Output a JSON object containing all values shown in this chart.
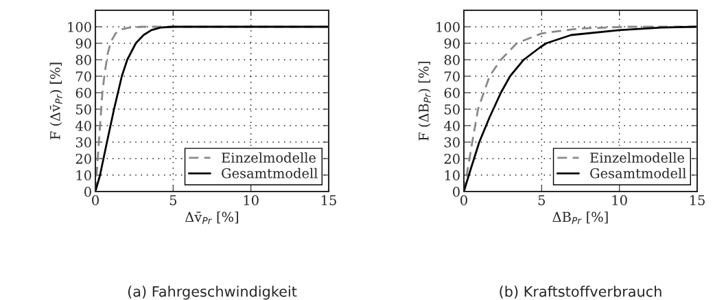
{
  "chart_data": [
    {
      "type": "line",
      "xlabel": "Δv̄$_{Pr}$ [%]",
      "ylabel": "F (Δv̄$_{Pr}$) [%]",
      "annotations": [
        "(a) Fahrgeschwindigkeit"
      ],
      "xlim": [
        0,
        15
      ],
      "ylim": [
        0,
        110
      ],
      "xticks": [
        0,
        5,
        10,
        15
      ],
      "yticks": [
        0,
        10,
        20,
        30,
        40,
        50,
        60,
        70,
        80,
        90,
        100
      ],
      "grid": true,
      "legend": "bottom right",
      "series": [
        {
          "name": "Einzelmodelle",
          "color": "#888888",
          "line_style": "dashed",
          "x": [
            0,
            0.15,
            0.3,
            0.45,
            0.6,
            0.8,
            1.0,
            1.3,
            1.7,
            2.2,
            3,
            15
          ],
          "values": [
            0,
            20,
            40,
            60,
            72,
            84,
            91,
            96,
            98.5,
            99.5,
            100,
            100
          ]
        },
        {
          "name": "Gesamtmodell",
          "color": "#000000",
          "line_style": "solid",
          "x": [
            0,
            0.3,
            0.7,
            1.2,
            1.7,
            2.05,
            2.6,
            3.1,
            3.6,
            4.2,
            5,
            15
          ],
          "values": [
            0,
            10,
            28,
            50,
            70,
            80,
            90,
            95,
            98,
            99.5,
            100,
            100
          ]
        }
      ]
    },
    {
      "type": "line",
      "xlabel": "ΔB$_{Pr}$ [%]",
      "ylabel": "F (ΔB$_{Pr}$) [%]",
      "annotations": [
        "(b) Kraftstoffverbrauch"
      ],
      "xlim": [
        0,
        15
      ],
      "ylim": [
        0,
        110
      ],
      "xticks": [
        0,
        5,
        10,
        15
      ],
      "yticks": [
        0,
        10,
        20,
        30,
        40,
        50,
        60,
        70,
        80,
        90,
        100
      ],
      "grid": true,
      "legend": "bottom right",
      "series": [
        {
          "name": "Einzelmodelle",
          "color": "#888888",
          "line_style": "dashed",
          "x": [
            0,
            0.18,
            0.54,
            0.91,
            1.28,
            1.65,
            2.38,
            3.4,
            5,
            7.5,
            10.5,
            15
          ],
          "values": [
            0,
            10,
            30,
            50,
            60,
            70,
            80,
            90,
            96,
            99,
            100,
            100
          ]
        },
        {
          "name": "Gesamtmodell",
          "color": "#000000",
          "line_style": "solid",
          "x": [
            0,
            0.32,
            0.99,
            1.65,
            2.38,
            2.97,
            3.85,
            4.9,
            5.3,
            6.9,
            10,
            12.7,
            14.9
          ],
          "values": [
            0,
            10,
            30,
            45,
            60,
            70,
            80,
            87.5,
            90,
            95,
            98,
            99.5,
            100
          ]
        }
      ]
    }
  ]
}
